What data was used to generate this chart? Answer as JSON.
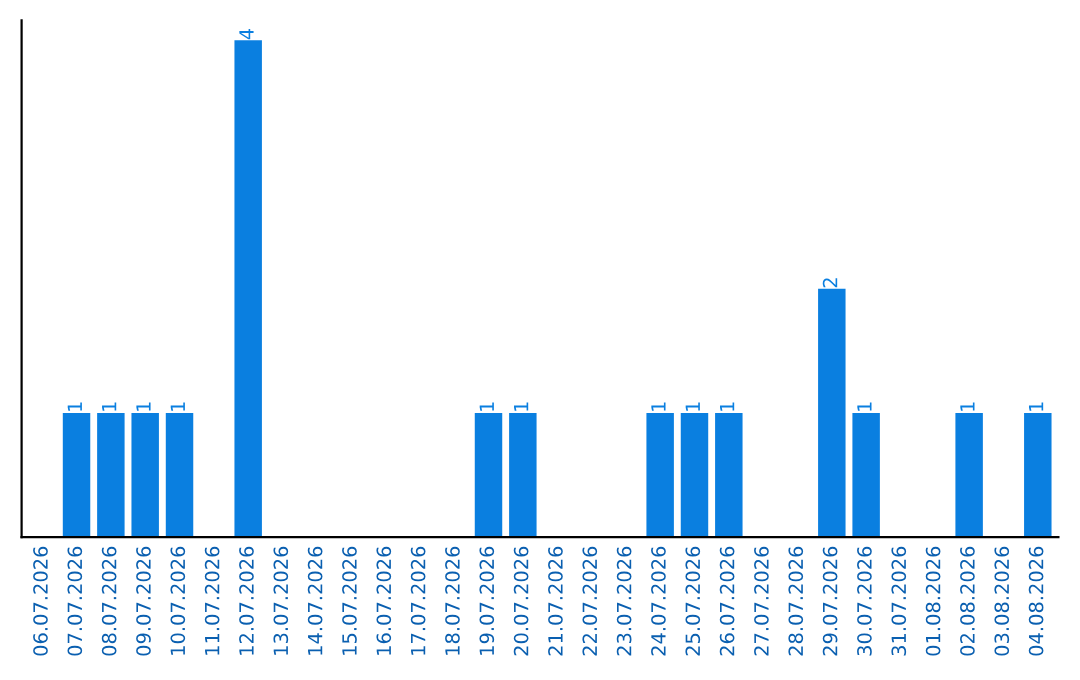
{
  "chart_data": {
    "type": "bar",
    "categories": [
      "06.07.2026",
      "07.07.2026",
      "08.07.2026",
      "09.07.2026",
      "10.07.2026",
      "11.07.2026",
      "12.07.2026",
      "13.07.2026",
      "14.07.2026",
      "15.07.2026",
      "16.07.2026",
      "17.07.2026",
      "18.07.2026",
      "19.07.2026",
      "20.07.2026",
      "21.07.2026",
      "22.07.2026",
      "23.07.2026",
      "24.07.2026",
      "25.07.2026",
      "26.07.2026",
      "27.07.2026",
      "28.07.2026",
      "29.07.2026",
      "30.07.2026",
      "31.07.2026",
      "01.08.2026",
      "02.08.2026",
      "03.08.2026",
      "04.08.2026"
    ],
    "values": [
      0,
      1,
      1,
      1,
      1,
      0,
      4,
      0,
      0,
      0,
      0,
      0,
      0,
      1,
      1,
      0,
      0,
      0,
      1,
      1,
      1,
      0,
      0,
      2,
      1,
      0,
      0,
      1,
      0,
      1
    ],
    "value_labels": [
      null,
      "1",
      "1",
      "1",
      "1",
      null,
      "4",
      null,
      null,
      null,
      null,
      null,
      null,
      "1",
      "1",
      null,
      null,
      null,
      "1",
      "1",
      "1",
      null,
      null,
      "2",
      "1",
      null,
      null,
      "1",
      null,
      "1"
    ],
    "color": "#0a7fe0",
    "ylim": [
      0,
      4.16
    ],
    "grid": false,
    "legend": false
  }
}
